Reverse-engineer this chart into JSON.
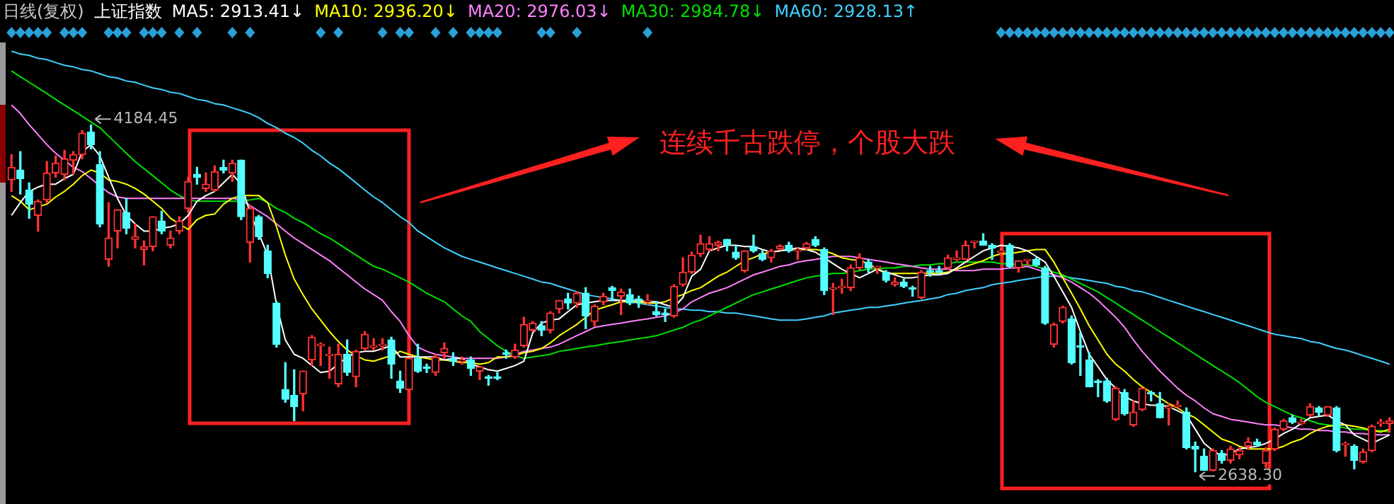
{
  "chart_data": {
    "type": "candlestick",
    "title": "日线(复权)",
    "subtitle": "上证指数",
    "categories": [
      null,
      null,
      null,
      null,
      null,
      null,
      null,
      null,
      null,
      null,
      null,
      null,
      null,
      null,
      null,
      null,
      null,
      null,
      null,
      null,
      null,
      null,
      null,
      null,
      null,
      null,
      null,
      null,
      null,
      null,
      null,
      null,
      null,
      null,
      null,
      null,
      null,
      null,
      null,
      null,
      null,
      null,
      null,
      null,
      null,
      null,
      null,
      null,
      null,
      null,
      null,
      null,
      null,
      null,
      null,
      null,
      null,
      null,
      null,
      null,
      null,
      null,
      null,
      null,
      null,
      null,
      null,
      null,
      null,
      null,
      null,
      null,
      null,
      null,
      null,
      null,
      null,
      null,
      null,
      null,
      null,
      null,
      null,
      null,
      null,
      null,
      null,
      null,
      null,
      null,
      null,
      null,
      null,
      null,
      null,
      null,
      null,
      null,
      null,
      null,
      null,
      null,
      null,
      null,
      null,
      null,
      null,
      null,
      null,
      null,
      null,
      null,
      null,
      null,
      null,
      null,
      null,
      null,
      null,
      null,
      null,
      null,
      null,
      null,
      null,
      null,
      null,
      null,
      null,
      null,
      null,
      null,
      null,
      null,
      null,
      null,
      null,
      null,
      null,
      null,
      null,
      null,
      null,
      null,
      null,
      null,
      null,
      null,
      null,
      null,
      null,
      null,
      null,
      null,
      null,
      null,
      null
    ],
    "ohlc": [
      [
        3939,
        4052,
        3888,
        3995
      ],
      [
        3983,
        4065,
        3876,
        3945
      ],
      [
        3894,
        3926,
        3768,
        3831
      ],
      [
        3781,
        3850,
        3711,
        3844
      ],
      [
        3850,
        4021,
        3838,
        3970
      ],
      [
        3970,
        4046,
        3951,
        4014
      ],
      [
        3964,
        4071,
        3939,
        4033
      ],
      [
        4027,
        4065,
        3964,
        4052
      ],
      [
        4052,
        4159,
        4033,
        4147
      ],
      [
        4153,
        4184.45,
        4077,
        4096
      ],
      [
        4008,
        4065,
        3730,
        3743
      ],
      [
        3585,
        3838,
        3554,
        3680
      ],
      [
        3711,
        3806,
        3636,
        3806
      ],
      [
        3794,
        3857,
        3699,
        3724
      ],
      [
        3674,
        3743,
        3636,
        3686
      ],
      [
        3629,
        3667,
        3560,
        3642
      ],
      [
        3642,
        3775,
        3623,
        3775
      ],
      [
        3756,
        3800,
        3699,
        3711
      ],
      [
        3648,
        3711,
        3636,
        3680
      ],
      [
        3711,
        3775,
        3699,
        3756
      ],
      [
        3812,
        3951,
        3794,
        3932
      ],
      [
        3964,
        3995,
        3920,
        3951
      ],
      [
        3901,
        3970,
        3888,
        3920
      ],
      [
        3894,
        4002,
        3888,
        3976
      ],
      [
        3995,
        4027,
        3970,
        3983
      ],
      [
        3970,
        4027,
        3932,
        4014
      ],
      [
        4027,
        4027,
        3762,
        3775
      ],
      [
        3661,
        3825,
        3573,
        3812
      ],
      [
        3775,
        3781,
        3674,
        3686
      ],
      [
        3623,
        3648,
        3503,
        3522
      ],
      [
        3390,
        3396,
        3194,
        3207
      ],
      [
        3005,
        3125,
        2948,
        2961
      ],
      [
        2979,
        3093,
        2866,
        2929
      ],
      [
        2986,
        3087,
        2910,
        3087
      ],
      [
        3137,
        3245,
        3112,
        3238
      ],
      [
        3200,
        3213,
        3112,
        3207
      ],
      [
        3156,
        3194,
        3055,
        3162
      ],
      [
        3030,
        3207,
        3017,
        3162
      ],
      [
        3162,
        3226,
        3068,
        3081
      ],
      [
        3062,
        3181,
        3017,
        3175
      ],
      [
        3188,
        3263,
        3181,
        3251
      ],
      [
        3194,
        3232,
        3181,
        3200
      ],
      [
        3200,
        3232,
        3181,
        3207
      ],
      [
        3226,
        3238,
        3055,
        3118
      ],
      [
        3043,
        3087,
        2992,
        3011
      ],
      [
        3005,
        3144,
        2992,
        3144
      ],
      [
        3144,
        3207,
        3081,
        3087
      ],
      [
        3106,
        3118,
        3081,
        3099
      ],
      [
        3081,
        3162,
        3068,
        3150
      ],
      [
        3169,
        3213,
        3144,
        3188
      ],
      [
        3144,
        3169,
        3112,
        3131
      ],
      [
        3131,
        3150,
        3118,
        3137
      ],
      [
        3137,
        3150,
        3068,
        3099
      ],
      [
        3087,
        3106,
        3049,
        3106
      ],
      [
        3062,
        3068,
        3024,
        3055
      ],
      [
        3062,
        3081,
        3049,
        3055
      ],
      [
        3169,
        3181,
        3144,
        3162
      ],
      [
        3150,
        3207,
        3144,
        3181
      ],
      [
        3200,
        3327,
        3194,
        3295
      ],
      [
        3270,
        3308,
        3263,
        3301
      ],
      [
        3289,
        3308,
        3245,
        3270
      ],
      [
        3270,
        3352,
        3257,
        3346
      ],
      [
        3364,
        3402,
        3346,
        3402
      ],
      [
        3409,
        3434,
        3364,
        3390
      ],
      [
        3390,
        3440,
        3371,
        3434
      ],
      [
        3434,
        3459,
        3276,
        3333
      ],
      [
        3308,
        3383,
        3289,
        3377
      ],
      [
        3396,
        3434,
        3383,
        3421
      ],
      [
        3459,
        3465,
        3402,
        3446
      ],
      [
        3421,
        3453,
        3339,
        3440
      ],
      [
        3428,
        3453,
        3383,
        3390
      ],
      [
        3409,
        3421,
        3371,
        3402
      ],
      [
        3396,
        3428,
        3383,
        3402
      ],
      [
        3352,
        3396,
        3333,
        3339
      ],
      [
        3346,
        3364,
        3308,
        3339
      ],
      [
        3333,
        3472,
        3327,
        3465
      ],
      [
        3472,
        3592,
        3465,
        3528
      ],
      [
        3528,
        3617,
        3522,
        3604
      ],
      [
        3610,
        3693,
        3598,
        3655
      ],
      [
        3629,
        3686,
        3623,
        3655
      ],
      [
        3648,
        3667,
        3623,
        3661
      ],
      [
        3674,
        3674,
        3623,
        3648
      ],
      [
        3617,
        3648,
        3585,
        3592
      ],
      [
        3535,
        3623,
        3528,
        3623
      ],
      [
        3642,
        3693,
        3617,
        3623
      ],
      [
        3610,
        3623,
        3579,
        3585
      ],
      [
        3592,
        3629,
        3573,
        3623
      ],
      [
        3632,
        3650,
        3627,
        3644
      ],
      [
        3648,
        3661,
        3617,
        3623
      ],
      [
        3623,
        3636,
        3585,
        3629
      ],
      [
        3636,
        3661,
        3629,
        3655
      ],
      [
        3674,
        3686,
        3642,
        3648
      ],
      [
        3629,
        3636,
        3428,
        3446
      ],
      [
        3453,
        3478,
        3339,
        3459
      ],
      [
        3459,
        3497,
        3434,
        3465
      ],
      [
        3459,
        3560,
        3446,
        3547
      ],
      [
        3547,
        3610,
        3541,
        3592
      ],
      [
        3573,
        3585,
        3528,
        3547
      ],
      [
        3547,
        3554,
        3522,
        3554
      ],
      [
        3528,
        3535,
        3484,
        3491
      ],
      [
        3472,
        3503,
        3465,
        3484
      ],
      [
        3484,
        3497,
        3459,
        3465
      ],
      [
        3459,
        3465,
        3421,
        3453
      ],
      [
        3415,
        3535,
        3409,
        3528
      ],
      [
        3535,
        3554,
        3510,
        3528
      ],
      [
        3535,
        3554,
        3522,
        3528
      ],
      [
        3547,
        3604,
        3541,
        3592
      ],
      [
        3585,
        3623,
        3579,
        3592
      ],
      [
        3585,
        3667,
        3585,
        3648
      ],
      [
        3661,
        3667,
        3636,
        3667
      ],
      [
        3667,
        3699,
        3648,
        3648
      ],
      [
        3648,
        3655,
        3585,
        3636
      ],
      [
        3617,
        3636,
        3604,
        3623
      ],
      [
        3648,
        3655,
        3547,
        3554
      ],
      [
        3547,
        3579,
        3528,
        3579
      ],
      [
        3579,
        3585,
        3560,
        3585
      ],
      [
        3585,
        3592,
        3554,
        3560
      ],
      [
        3547,
        3554,
        3295,
        3301
      ],
      [
        3207,
        3301,
        3194,
        3295
      ],
      [
        3308,
        3377,
        3301,
        3371
      ],
      [
        3320,
        3333,
        3118,
        3125
      ],
      [
        3200,
        3257,
        3068,
        3194
      ],
      [
        3137,
        3169,
        3017,
        3017
      ],
      [
        3043,
        3049,
        2973,
        3036
      ],
      [
        3043,
        3055,
        2948,
        2954
      ],
      [
        2872,
        3017,
        2866,
        3011
      ],
      [
        2992,
        3005,
        2891,
        2897
      ],
      [
        2847,
        2954,
        2841,
        2904
      ],
      [
        2916,
        3011,
        2910,
        3011
      ],
      [
        2992,
        2998,
        2954,
        2986
      ],
      [
        2942,
        2992,
        2879,
        2879
      ],
      [
        2923,
        2942,
        2847,
        2929
      ],
      [
        2929,
        2954,
        2923,
        2935
      ],
      [
        2904,
        2923,
        2740,
        2746
      ],
      [
        2752,
        2771,
        2638.3,
        2740
      ],
      [
        2708,
        2740,
        2645,
        2645
      ],
      [
        2645,
        2740,
        2642,
        2733
      ],
      [
        2721,
        2733,
        2677,
        2689
      ],
      [
        2689,
        2752,
        2677,
        2740
      ],
      [
        2714,
        2746,
        2696,
        2733
      ],
      [
        2752,
        2790,
        2740,
        2771
      ],
      [
        2771,
        2784,
        2752,
        2759
      ],
      [
        2677,
        2746,
        2658,
        2733
      ],
      [
        2740,
        2834,
        2733,
        2828
      ],
      [
        2828,
        2872,
        2822,
        2866
      ],
      [
        2879,
        2891,
        2853,
        2860
      ],
      [
        2853,
        2872,
        2847,
        2860
      ],
      [
        2891,
        2942,
        2885,
        2929
      ],
      [
        2923,
        2929,
        2891,
        2904
      ],
      [
        2891,
        2929,
        2885,
        2929
      ],
      [
        2923,
        2929,
        2727,
        2733
      ],
      [
        2759,
        2771,
        2708,
        2765
      ],
      [
        2752,
        2759,
        2651,
        2689
      ],
      [
        2683,
        2740,
        2677,
        2727
      ],
      [
        2733,
        2847,
        2727,
        2841
      ],
      [
        2853,
        2872,
        2841,
        2860
      ],
      [
        2853,
        2879,
        2815,
        2866
      ]
    ],
    "colors": [
      "#ff3232",
      "#54ffff",
      "#54ffff",
      "#ff3232",
      "#ff3232",
      "#ff3232",
      "#ff3232",
      "#ff3232",
      "#ff3232",
      "#54ffff",
      "#54ffff",
      "#ff3232",
      "#ff3232",
      "#54ffff",
      "#ff3232",
      "#ff3232",
      "#ff3232",
      "#54ffff",
      "#ff3232",
      "#ff3232",
      "#ff3232",
      "#54ffff",
      "#ff3232",
      "#ff3232",
      "#54ffff",
      "#ff3232",
      "#54ffff",
      "#ff3232",
      "#54ffff",
      "#54ffff",
      "#54ffff",
      "#54ffff",
      "#54ffff",
      "#ff3232",
      "#ff3232",
      "#ff3232",
      "#ff3232",
      "#ff3232",
      "#54ffff",
      "#ff3232",
      "#ff3232",
      "#ff3232",
      "#ff3232",
      "#54ffff",
      "#54ffff",
      "#ff3232",
      "#54ffff",
      "#54ffff",
      "#ff3232",
      "#ff3232",
      "#54ffff",
      "#ff3232",
      "#54ffff",
      "#ff3232",
      "#54ffff",
      "#54ffff",
      "#54ffff",
      "#ff3232",
      "#ff3232",
      "#ff3232",
      "#54ffff",
      "#ff3232",
      "#ff3232",
      "#54ffff",
      "#ff3232",
      "#54ffff",
      "#ff3232",
      "#ff3232",
      "#54ffff",
      "#ff3232",
      "#54ffff",
      "#54ffff",
      "#ff3232",
      "#54ffff",
      "#54ffff",
      "#ff3232",
      "#ff3232",
      "#ff3232",
      "#ff3232",
      "#ff3232",
      "#ff3232",
      "#54ffff",
      "#54ffff",
      "#ff3232",
      "#54ffff",
      "#54ffff",
      "#ff3232",
      "#ff3232",
      "#54ffff",
      "#ff3232",
      "#ff3232",
      "#54ffff",
      "#54ffff",
      "#ff3232",
      "#ff3232",
      "#ff3232",
      "#ff3232",
      "#54ffff",
      "#ff3232",
      "#54ffff",
      "#ff3232",
      "#54ffff",
      "#54ffff",
      "#ff3232",
      "#54ffff",
      "#54ffff",
      "#ff3232",
      "#ff3232",
      "#ff3232",
      "#ff3232",
      "#54ffff",
      "#54ffff",
      "#ff3232",
      "#54ffff",
      "#ff3232",
      "#ff3232",
      "#54ffff",
      "#54ffff",
      "#ff3232",
      "#ff3232",
      "#54ffff",
      "#54ffff",
      "#54ffff",
      "#54ffff",
      "#54ffff",
      "#ff3232",
      "#54ffff",
      "#ff3232",
      "#ff3232",
      "#54ffff",
      "#54ffff",
      "#ff3232",
      "#ff3232",
      "#54ffff",
      "#54ffff",
      "#54ffff",
      "#ff3232",
      "#54ffff",
      "#ff3232",
      "#ff3232",
      "#ff3232",
      "#54ffff",
      "#ff3232",
      "#ff3232",
      "#ff3232",
      "#54ffff",
      "#ff3232",
      "#ff3232",
      "#54ffff",
      "#ff3232",
      "#54ffff",
      "#ff3232",
      "#54ffff",
      "#ff3232",
      "#ff3232",
      "#ff3232",
      "#ff3232"
    ],
    "series": [
      {
        "name": "MA5: 2913.41↓",
        "type": "line",
        "color": "#ffffff",
        "values": [
          3781,
          3838,
          3888,
          3907,
          3920,
          3920,
          3945,
          3964,
          4065,
          4096,
          4046,
          3951,
          3857,
          3781,
          3743,
          3711,
          3711,
          3724,
          3730,
          3743,
          3781,
          3844,
          3869,
          3888,
          3926,
          3964,
          3920,
          3794,
          3699,
          3604,
          3383,
          3226,
          3162,
          3144,
          3112,
          3081,
          3087,
          3118,
          3150,
          3169,
          3175,
          3175,
          3188,
          3200,
          3150,
          3150,
          3150,
          3150,
          3150,
          3137,
          3144,
          3144,
          3118,
          3106,
          3093,
          3087,
          3099,
          3112,
          3131,
          3257,
          3301,
          3314,
          3320,
          3352,
          3383,
          3390,
          3396,
          3402,
          3402,
          3402,
          3402,
          3402,
          3396,
          3396,
          3383,
          3371,
          3415,
          3510,
          3541,
          3623,
          3636,
          3648,
          3648,
          3642,
          3642,
          3629,
          3617,
          3623,
          3629,
          3636,
          3629,
          3617,
          3592,
          3566,
          3541,
          3522,
          3503,
          3522,
          3541,
          3528,
          3516,
          3503,
          3503,
          3510,
          3516,
          3516,
          3522,
          3547,
          3573,
          3598,
          3623,
          3636,
          3648,
          3642,
          3636,
          3623,
          3598,
          3573,
          3510,
          3440,
          3371,
          3263,
          3162,
          3106,
          3049,
          3011,
          2973,
          2954,
          2942,
          2935,
          2935,
          2929,
          2910,
          2891,
          2828,
          2765,
          2733,
          2708,
          2721,
          2740,
          2746,
          2752,
          2765,
          2784,
          2809,
          2828,
          2853,
          2879,
          2885,
          2891,
          2866,
          2847,
          2803,
          2784,
          2765,
          2784,
          2803
        ]
      },
      {
        "name": "MA10: 2936.20↓",
        "type": "line",
        "color": "#ffff00",
        "values": [
          3869,
          3844,
          3806,
          3819,
          3831,
          3863,
          3888,
          3920,
          3958,
          3983,
          3970,
          3939,
          3932,
          3920,
          3901,
          3876,
          3844,
          3812,
          3768,
          3743,
          3718,
          3762,
          3781,
          3787,
          3831,
          3857,
          3869,
          3869,
          3869,
          3838,
          3730,
          3604,
          3497,
          3428,
          3364,
          3314,
          3263,
          3219,
          3181,
          3156,
          3137,
          3131,
          3144,
          3156,
          3175,
          3162,
          3150,
          3144,
          3137,
          3137,
          3131,
          3125,
          3125,
          3118,
          3125,
          3150,
          3150,
          3156,
          3169,
          3175,
          3188,
          3213,
          3245,
          3270,
          3295,
          3327,
          3358,
          3371,
          3383,
          3396,
          3396,
          3396,
          3390,
          3390,
          3396,
          3415,
          3428,
          3446,
          3459,
          3484,
          3510,
          3528,
          3554,
          3579,
          3592,
          3610,
          3617,
          3623,
          3629,
          3629,
          3629,
          3629,
          3623,
          3610,
          3592,
          3585,
          3579,
          3566,
          3541,
          3522,
          3522,
          3522,
          3522,
          3522,
          3522,
          3522,
          3528,
          3541,
          3554,
          3566,
          3579,
          3598,
          3610,
          3610,
          3617,
          3623,
          3629,
          3629,
          3573,
          3503,
          3434,
          3364,
          3289,
          3226,
          3162,
          3118,
          3087,
          3049,
          3017,
          2992,
          2967,
          2942,
          2923,
          2897,
          2879,
          2847,
          2816,
          2784,
          2771,
          2752,
          2740,
          2740,
          2740,
          2740,
          2752,
          2771,
          2784,
          2809,
          2828,
          2841,
          2847,
          2847,
          2841,
          2834,
          2822,
          2816,
          2828
        ]
      },
      {
        "name": "MA20: 2976.03↓",
        "type": "line",
        "color": "#ff80ff",
        "values": [
          4273,
          4235,
          4185,
          4141,
          4096,
          4058,
          4027,
          3995,
          3976,
          3945,
          3913,
          3882,
          3863,
          3857,
          3857,
          3857,
          3857,
          3857,
          3857,
          3857,
          3857,
          3857,
          3857,
          3857,
          3857,
          3857,
          3850,
          3825,
          3800,
          3775,
          3743,
          3711,
          3680,
          3655,
          3629,
          3604,
          3579,
          3547,
          3516,
          3484,
          3453,
          3428,
          3402,
          3352,
          3308,
          3245,
          3194,
          3175,
          3162,
          3156,
          3150,
          3144,
          3144,
          3144,
          3144,
          3144,
          3150,
          3162,
          3175,
          3181,
          3188,
          3194,
          3207,
          3226,
          3245,
          3263,
          3282,
          3289,
          3295,
          3301,
          3308,
          3314,
          3320,
          3327,
          3333,
          3346,
          3364,
          3396,
          3415,
          3434,
          3446,
          3459,
          3478,
          3497,
          3516,
          3528,
          3541,
          3554,
          3560,
          3573,
          3579,
          3585,
          3592,
          3598,
          3598,
          3598,
          3592,
          3585,
          3579,
          3573,
          3566,
          3560,
          3554,
          3547,
          3541,
          3541,
          3541,
          3535,
          3535,
          3535,
          3541,
          3541,
          3541,
          3547,
          3547,
          3554,
          3541,
          3528,
          3516,
          3503,
          3484,
          3459,
          3434,
          3402,
          3364,
          3327,
          3282,
          3226,
          3175,
          3131,
          3087,
          3049,
          3011,
          2979,
          2954,
          2923,
          2897,
          2885,
          2872,
          2866,
          2860,
          2853,
          2847,
          2847,
          2841,
          2834,
          2828,
          2828,
          2822,
          2822,
          2816,
          2816,
          2809,
          2809,
          2803,
          2803,
          2803
        ]
      },
      {
        "name": "MA30: 2984.78↓",
        "type": "line",
        "color": "#00e000",
        "values": [
          4425,
          4399,
          4374,
          4349,
          4324,
          4298,
          4273,
          4248,
          4223,
          4197,
          4172,
          4134,
          4096,
          4058,
          4021,
          3989,
          3958,
          3926,
          3894,
          3869,
          3850,
          3844,
          3844,
          3844,
          3844,
          3844,
          3844,
          3850,
          3857,
          3838,
          3812,
          3794,
          3768,
          3749,
          3724,
          3699,
          3680,
          3655,
          3629,
          3604,
          3579,
          3554,
          3541,
          3522,
          3503,
          3484,
          3459,
          3434,
          3415,
          3396,
          3364,
          3333,
          3308,
          3263,
          3232,
          3200,
          3175,
          3156,
          3144,
          3150,
          3156,
          3162,
          3175,
          3181,
          3188,
          3194,
          3200,
          3207,
          3213,
          3219,
          3226,
          3232,
          3238,
          3245,
          3257,
          3270,
          3282,
          3301,
          3314,
          3333,
          3352,
          3371,
          3390,
          3409,
          3428,
          3440,
          3453,
          3465,
          3478,
          3491,
          3503,
          3510,
          3516,
          3522,
          3522,
          3528,
          3535,
          3541,
          3541,
          3547,
          3547,
          3554,
          3554,
          3560,
          3560,
          3566,
          3566,
          3573,
          3573,
          3573,
          3573,
          3573,
          3566,
          3566,
          3560,
          3560,
          3554,
          3541,
          3528,
          3516,
          3497,
          3478,
          3459,
          3440,
          3415,
          3390,
          3364,
          3339,
          3314,
          3289,
          3263,
          3238,
          3213,
          3188,
          3162,
          3137,
          3112,
          3087,
          3062,
          3036,
          3005,
          2973,
          2948,
          2929,
          2910,
          2891,
          2879,
          2866,
          2853,
          2847,
          2841,
          2834,
          2828,
          2828,
          2822,
          2822,
          2816
        ]
      },
      {
        "name": "MA60: 2928.13↑",
        "type": "line",
        "color": "#40d0ff",
        "values": [
          4513,
          4500,
          4494,
          4481,
          4475,
          4462,
          4450,
          4443,
          4431,
          4425,
          4412,
          4399,
          4393,
          4380,
          4374,
          4361,
          4349,
          4342,
          4330,
          4324,
          4311,
          4298,
          4292,
          4279,
          4273,
          4260,
          4248,
          4235,
          4216,
          4191,
          4172,
          4147,
          4128,
          4103,
          4071,
          4046,
          4014,
          3989,
          3958,
          3926,
          3894,
          3863,
          3838,
          3806,
          3775,
          3749,
          3711,
          3686,
          3661,
          3636,
          3617,
          3598,
          3585,
          3573,
          3560,
          3547,
          3535,
          3522,
          3510,
          3497,
          3484,
          3478,
          3465,
          3453,
          3440,
          3428,
          3421,
          3415,
          3409,
          3402,
          3396,
          3390,
          3383,
          3377,
          3371,
          3364,
          3364,
          3358,
          3358,
          3352,
          3352,
          3346,
          3346,
          3339,
          3333,
          3327,
          3320,
          3314,
          3314,
          3314,
          3320,
          3327,
          3333,
          3346,
          3352,
          3358,
          3364,
          3371,
          3371,
          3377,
          3383,
          3390,
          3396,
          3402,
          3409,
          3415,
          3428,
          3434,
          3446,
          3453,
          3459,
          3472,
          3478,
          3484,
          3491,
          3497,
          3503,
          3510,
          3510,
          3510,
          3503,
          3497,
          3491,
          3484,
          3478,
          3465,
          3459,
          3446,
          3440,
          3428,
          3415,
          3402,
          3390,
          3377,
          3364,
          3352,
          3339,
          3327,
          3314,
          3301,
          3289,
          3276,
          3263,
          3251,
          3245,
          3238,
          3232,
          3219,
          3213,
          3200,
          3188,
          3181,
          3169,
          3156,
          3144,
          3131,
          3118
        ]
      }
    ],
    "value_labels": [
      null,
      null,
      null,
      null,
      null,
      null,
      null,
      null,
      null,
      "4184.45",
      null,
      null,
      null,
      null,
      null,
      null,
      null,
      null,
      null,
      null,
      null,
      null,
      null,
      null,
      null,
      null,
      null,
      null,
      null,
      null,
      null,
      null,
      null,
      null,
      null,
      null,
      null,
      null,
      null,
      null,
      null,
      null,
      null,
      null,
      null,
      null,
      null,
      null,
      null,
      null,
      null,
      null,
      null,
      null,
      null,
      null,
      null,
      null,
      null,
      null,
      null,
      null,
      null,
      null,
      null,
      null,
      null,
      null,
      null,
      null,
      null,
      null,
      null,
      null,
      null,
      null,
      null,
      null,
      null,
      null,
      null,
      null,
      null,
      null,
      null,
      null,
      null,
      null,
      null,
      null,
      null,
      null,
      null,
      null,
      null,
      null,
      null,
      null,
      null,
      null,
      null,
      null,
      null,
      null,
      null,
      null,
      null,
      null,
      null,
      null,
      null,
      null,
      null,
      null,
      null,
      null,
      null,
      null,
      null,
      null,
      null,
      null,
      null,
      null,
      null,
      null,
      null,
      null,
      null,
      null,
      null,
      null,
      null,
      null,
      "2638.30",
      null,
      null,
      null,
      null,
      null,
      null,
      null,
      null,
      null,
      null,
      null,
      null,
      null,
      null,
      null,
      null,
      null,
      null,
      null,
      null,
      null,
      null
    ],
    "tick_labels": false,
    "legend": "top",
    "annotations": [
      "连续千古跌停，个股大跌"
    ]
  }
}
